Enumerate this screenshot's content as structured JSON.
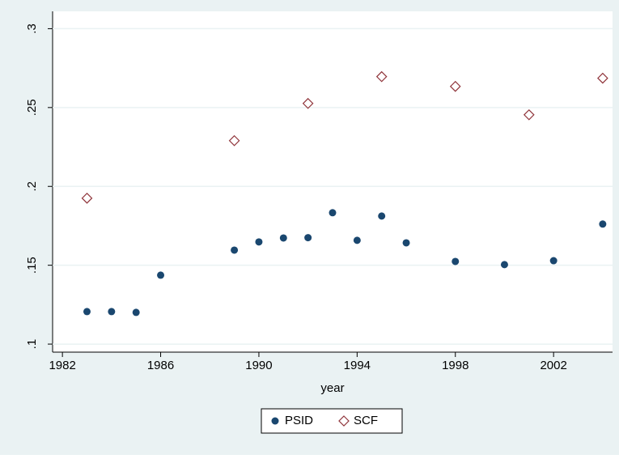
{
  "chart_data": {
    "type": "scatter",
    "x_label": "year",
    "xlim": [
      1981.6,
      2004.4
    ],
    "xticks": [
      1982,
      1986,
      1990,
      1994,
      1998,
      2002
    ],
    "ylim": [
      0.0949,
      0.311
    ],
    "yticks": [
      {
        "value": 0.1,
        "label": ".1"
      },
      {
        "value": 0.15,
        "label": ".15"
      },
      {
        "value": 0.2,
        "label": ".2"
      },
      {
        "value": 0.25,
        "label": ".25"
      },
      {
        "value": 0.3,
        "label": ".3"
      }
    ],
    "grid": true,
    "legend": "bottom",
    "series": [
      {
        "name": "PSID",
        "color": "#1a476f",
        "marker": "circle",
        "x": [
          1983,
          1984,
          1985,
          1986,
          1989,
          1990,
          1991,
          1992,
          1993,
          1994,
          1995,
          1996,
          1998,
          2000,
          2002,
          2004
        ],
        "values": [
          0.1206,
          0.1206,
          0.1201,
          0.1437,
          0.1596,
          0.1648,
          0.1673,
          0.1675,
          0.1833,
          0.1658,
          0.1812,
          0.1642,
          0.1524,
          0.1504,
          0.1529,
          0.1761
        ]
      },
      {
        "name": "SCF",
        "color": "#90353b",
        "marker": "diamond",
        "x": [
          1983,
          1989,
          1992,
          1995,
          1998,
          2001,
          2004
        ],
        "values": [
          0.1925,
          0.229,
          0.2526,
          0.2696,
          0.2634,
          0.2454,
          0.2686
        ]
      }
    ]
  }
}
